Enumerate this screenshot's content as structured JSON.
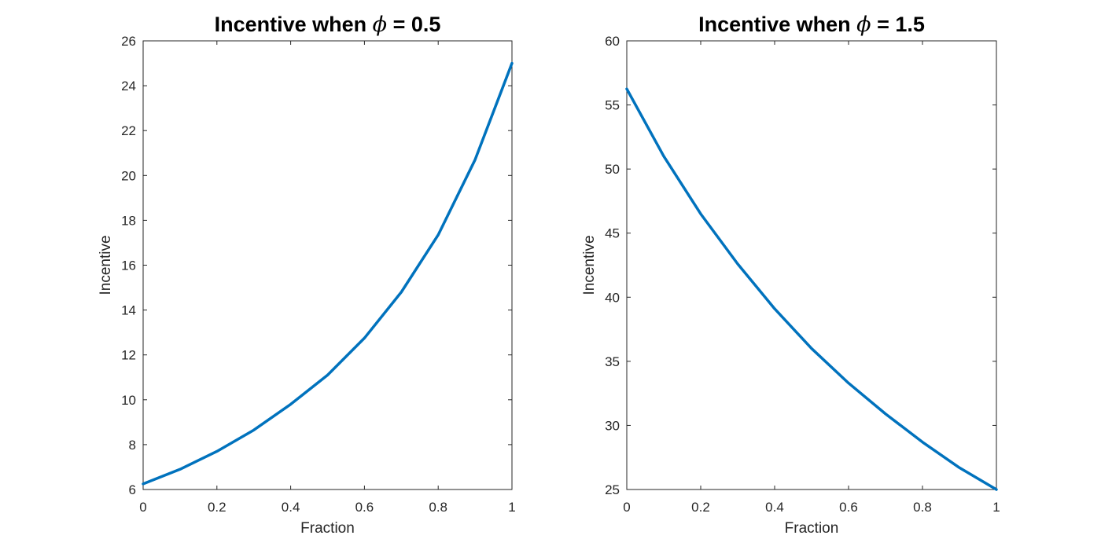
{
  "chart_data": [
    {
      "type": "line",
      "title": "Incentive when ϕ = 0.5",
      "title_parts": {
        "prefix": "Incentive when ",
        "symbol": "ϕ",
        "suffix": " = 0.5"
      },
      "xlabel": "Fraction",
      "ylabel": "Incentive",
      "xlim": [
        0,
        1
      ],
      "ylim": [
        6,
        26
      ],
      "x_ticks": [
        0,
        0.2,
        0.4,
        0.6,
        0.8,
        1
      ],
      "x_tick_labels": [
        "0",
        "0.2",
        "0.4",
        "0.6",
        "0.8",
        "1"
      ],
      "y_ticks": [
        6,
        8,
        10,
        12,
        14,
        16,
        18,
        20,
        22,
        24,
        26
      ],
      "y_tick_labels": [
        "6",
        "8",
        "10",
        "12",
        "14",
        "16",
        "18",
        "20",
        "22",
        "24",
        "26"
      ],
      "grid": false,
      "line_color": "#0072BD",
      "series": [
        {
          "x": [
            0,
            0.1,
            0.2,
            0.3,
            0.4,
            0.5,
            0.6,
            0.7,
            0.8,
            0.9,
            1.0
          ],
          "values": [
            6.25,
            6.9,
            7.7,
            8.65,
            9.8,
            11.1,
            12.75,
            14.8,
            17.35,
            20.7,
            25.0
          ]
        }
      ]
    },
    {
      "type": "line",
      "title": "Incentive when ϕ = 1.5",
      "title_parts": {
        "prefix": "Incentive when ",
        "symbol": "ϕ",
        "suffix": " = 1.5"
      },
      "xlabel": "Fraction",
      "ylabel": "Incentive",
      "xlim": [
        0,
        1
      ],
      "ylim": [
        25,
        60
      ],
      "x_ticks": [
        0,
        0.2,
        0.4,
        0.6,
        0.8,
        1
      ],
      "x_tick_labels": [
        "0",
        "0.2",
        "0.4",
        "0.6",
        "0.8",
        "1"
      ],
      "y_ticks": [
        25,
        30,
        35,
        40,
        45,
        50,
        55,
        60
      ],
      "y_tick_labels": [
        "25",
        "30",
        "35",
        "40",
        "45",
        "50",
        "55",
        "60"
      ],
      "grid": false,
      "line_color": "#0072BD",
      "series": [
        {
          "x": [
            0,
            0.1,
            0.2,
            0.3,
            0.4,
            0.5,
            0.6,
            0.7,
            0.8,
            0.9,
            1.0
          ],
          "values": [
            56.25,
            51.0,
            46.5,
            42.6,
            39.1,
            36.0,
            33.3,
            30.9,
            28.7,
            26.7,
            25.0
          ]
        }
      ]
    }
  ]
}
